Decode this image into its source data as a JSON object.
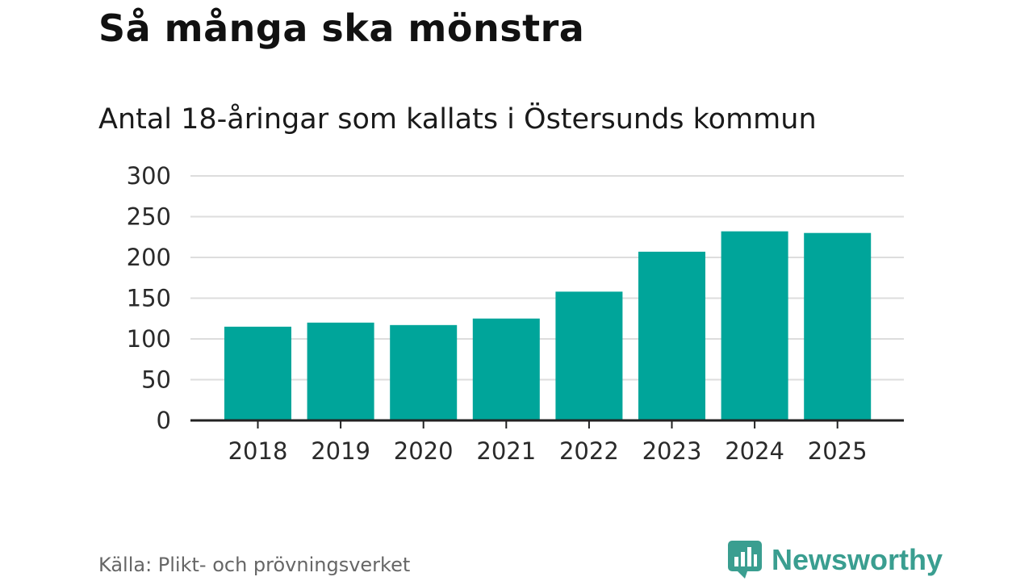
{
  "title": "Så många ska mönstra",
  "subtitle": "Antal 18-åringar som kallats i Östersunds kommun",
  "source": "Källa: Plikt- och prövningsverket",
  "brand": {
    "name": "Newsworthy",
    "icon": "newsworthy-logo-icon",
    "color": "#3a9e90"
  },
  "colors": {
    "bar": "#00a59a",
    "grid": "#dddddd",
    "axis": "#222222"
  },
  "chart_data": {
    "type": "bar",
    "categories": [
      "2018",
      "2019",
      "2020",
      "2021",
      "2022",
      "2023",
      "2024",
      "2025"
    ],
    "values": [
      115,
      120,
      117,
      125,
      158,
      207,
      232,
      230
    ],
    "yticks": [
      0,
      50,
      100,
      150,
      200,
      250,
      300
    ],
    "ylim": [
      0,
      300
    ],
    "xlabel": "",
    "ylabel": "",
    "grid": true
  }
}
